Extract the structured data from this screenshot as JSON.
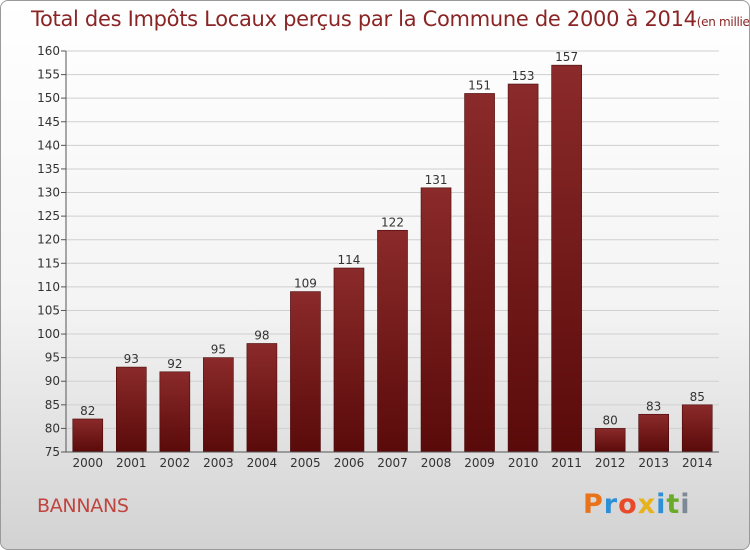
{
  "title": "Total des Impôts Locaux perçus par la Commune de 2000 à 2014",
  "title_unit": "(en milliers d'€)",
  "commune": "BANNANS",
  "logo": {
    "letters": [
      "P",
      "r",
      "o",
      "x",
      "i",
      "t",
      "i"
    ],
    "colors": [
      "#e8731a",
      "#2d8fd6",
      "#e84a2a",
      "#e8b21a",
      "#2d8fd6",
      "#6aab2a",
      "#7d8a96"
    ]
  },
  "colors": {
    "bar_dark": "#5a0a0a",
    "bar_light": "#8b2a2a",
    "title": "#8b2525",
    "commune": "#c0443f"
  },
  "chart_data": {
    "type": "bar",
    "categories": [
      "2000",
      "2001",
      "2002",
      "2003",
      "2004",
      "2005",
      "2006",
      "2007",
      "2008",
      "2009",
      "2010",
      "2011",
      "2012",
      "2013",
      "2014"
    ],
    "values": [
      82,
      93,
      92,
      95,
      98,
      109,
      114,
      122,
      131,
      151,
      153,
      157,
      80,
      83,
      85
    ],
    "ylim": [
      75,
      160
    ],
    "yticks": [
      75,
      80,
      85,
      90,
      95,
      100,
      105,
      110,
      115,
      120,
      125,
      130,
      135,
      140,
      145,
      150,
      155,
      160
    ],
    "grid": true
  }
}
